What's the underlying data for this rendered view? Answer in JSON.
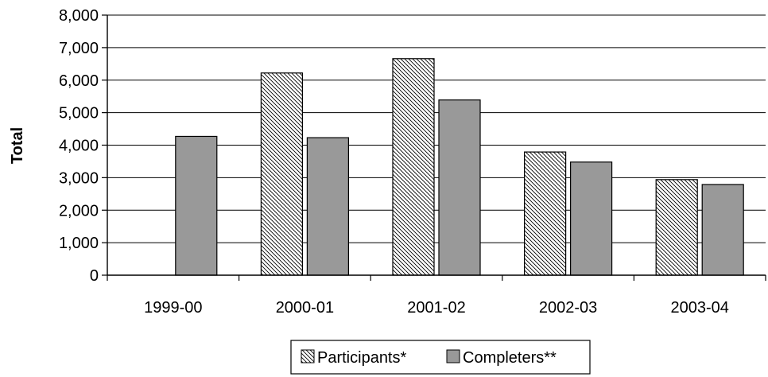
{
  "chart_data": {
    "type": "bar",
    "title": "",
    "xlabel": "",
    "ylabel": "Total",
    "ylim": [
      0,
      8000
    ],
    "yticks": [
      0,
      1000,
      2000,
      3000,
      4000,
      5000,
      6000,
      7000,
      8000
    ],
    "ytick_labels": [
      "0",
      "1,000",
      "2,000",
      "3,000",
      "4,000",
      "5,000",
      "6,000",
      "7,000",
      "8,000"
    ],
    "categories": [
      "1999-00",
      "2000-01",
      "2001-02",
      "2002-03",
      "2003-04"
    ],
    "series": [
      {
        "name": "Participants*",
        "values": [
          null,
          6220,
          6660,
          3790,
          2940
        ],
        "fill": "hatched",
        "color": "#ffffff"
      },
      {
        "name": "Completers**",
        "values": [
          4270,
          4230,
          5390,
          3480,
          2790
        ],
        "fill": "solid",
        "color": "#999999"
      }
    ],
    "grid": true,
    "legend_position": "bottom"
  }
}
